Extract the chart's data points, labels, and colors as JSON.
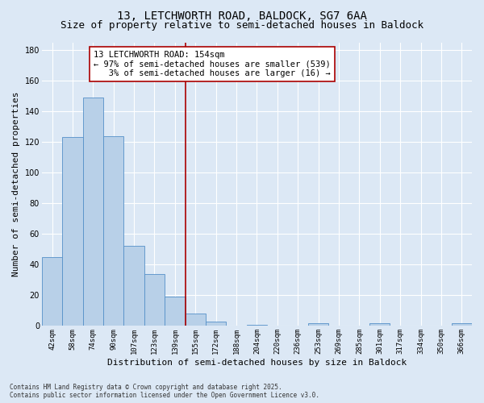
{
  "title_line1": "13, LETCHWORTH ROAD, BALDOCK, SG7 6AA",
  "title_line2": "Size of property relative to semi-detached houses in Baldock",
  "xlabel": "Distribution of semi-detached houses by size in Baldock",
  "ylabel": "Number of semi-detached properties",
  "categories": [
    "42sqm",
    "58sqm",
    "74sqm",
    "90sqm",
    "107sqm",
    "123sqm",
    "139sqm",
    "155sqm",
    "172sqm",
    "188sqm",
    "204sqm",
    "220sqm",
    "236sqm",
    "253sqm",
    "269sqm",
    "285sqm",
    "301sqm",
    "317sqm",
    "334sqm",
    "350sqm",
    "366sqm"
  ],
  "values": [
    45,
    123,
    149,
    124,
    52,
    34,
    19,
    8,
    3,
    0,
    1,
    0,
    0,
    2,
    0,
    0,
    2,
    0,
    0,
    0,
    2
  ],
  "bar_color": "#b8d0e8",
  "bar_edge_color": "#5590c8",
  "vline_color": "#aa0000",
  "annotation_line1": "13 LETCHWORTH ROAD: 154sqm",
  "annotation_line2": "← 97% of semi-detached houses are smaller (539)",
  "annotation_line3": "   3% of semi-detached houses are larger (16) →",
  "annotation_box_color": "#ffffff",
  "annotation_box_edge": "#aa0000",
  "ylim": [
    0,
    185
  ],
  "yticks": [
    0,
    20,
    40,
    60,
    80,
    100,
    120,
    140,
    160,
    180
  ],
  "background_color": "#dce8f5",
  "footer_text": "Contains HM Land Registry data © Crown copyright and database right 2025.\nContains public sector information licensed under the Open Government Licence v3.0.",
  "title_fontsize": 10,
  "subtitle_fontsize": 9,
  "axis_label_fontsize": 8,
  "tick_fontsize": 6.5,
  "annotation_fontsize": 7.5,
  "footer_fontsize": 5.5
}
